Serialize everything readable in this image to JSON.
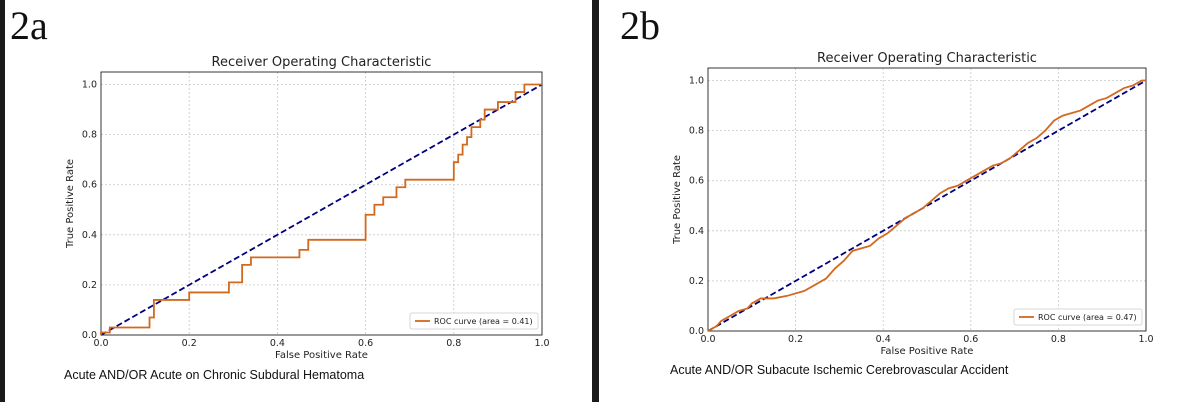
{
  "chart_data": [
    {
      "type": "line",
      "panel_label": "2a",
      "title": "Receiver Operating Characteristic",
      "xlabel": "False Positive Rate",
      "ylabel": "True Positive Rate",
      "caption": "Acute AND/OR Acute on Chronic Subdural Hematoma",
      "xlim": [
        0,
        1
      ],
      "ylim": [
        0,
        1.05
      ],
      "xticks": [
        "0.0",
        "0.2",
        "0.4",
        "0.6",
        "0.8",
        "1.0"
      ],
      "yticks": [
        "0.0",
        "0.2",
        "0.4",
        "0.6",
        "0.8",
        "1.0"
      ],
      "grid": true,
      "legend_position": "bottom-right",
      "series": [
        {
          "name": "ROC curve (area = 0.41)",
          "color": "#d2691e",
          "x": [
            0,
            0,
            0.02,
            0.02,
            0.05,
            0.05,
            0.11,
            0.11,
            0.12,
            0.12,
            0.2,
            0.2,
            0.29,
            0.29,
            0.32,
            0.32,
            0.34,
            0.34,
            0.45,
            0.45,
            0.47,
            0.47,
            0.6,
            0.6,
            0.62,
            0.62,
            0.64,
            0.64,
            0.67,
            0.67,
            0.69,
            0.69,
            0.71,
            0.71,
            0.8,
            0.8,
            0.81,
            0.81,
            0.82,
            0.82,
            0.83,
            0.83,
            0.84,
            0.84,
            0.85,
            0.85,
            0.86,
            0.86,
            0.87,
            0.87,
            0.9,
            0.9,
            0.94,
            0.94,
            0.96,
            0.96,
            1.0
          ],
          "y": [
            0,
            0.01,
            0.01,
            0.03,
            0.03,
            0.03,
            0.03,
            0.07,
            0.07,
            0.14,
            0.14,
            0.17,
            0.17,
            0.21,
            0.21,
            0.28,
            0.28,
            0.31,
            0.31,
            0.34,
            0.34,
            0.38,
            0.38,
            0.48,
            0.48,
            0.52,
            0.52,
            0.55,
            0.55,
            0.59,
            0.59,
            0.62,
            0.62,
            0.62,
            0.62,
            0.69,
            0.69,
            0.72,
            0.72,
            0.76,
            0.76,
            0.79,
            0.79,
            0.83,
            0.83,
            0.83,
            0.83,
            0.86,
            0.86,
            0.9,
            0.9,
            0.93,
            0.93,
            0.97,
            0.97,
            1.0,
            1.0
          ]
        },
        {
          "color": "#000080",
          "x": [
            0,
            1
          ],
          "y": [
            0,
            1
          ]
        }
      ]
    },
    {
      "type": "line",
      "panel_label": "2b",
      "title": "Receiver Operating Characteristic",
      "xlabel": "False Positive Rate",
      "ylabel": "True Positive Rate",
      "caption": "Acute AND/OR Subacute Ischemic Cerebrovascular Accident",
      "xlim": [
        0,
        1
      ],
      "ylim": [
        0,
        1.05
      ],
      "xticks": [
        "0.0",
        "0.2",
        "0.4",
        "0.6",
        "0.8",
        "1.0"
      ],
      "yticks": [
        "0.0",
        "0.2",
        "0.4",
        "0.6",
        "0.8",
        "1.0"
      ],
      "grid": true,
      "legend_position": "bottom-right",
      "series": [
        {
          "name": "ROC curve (area = 0.47)",
          "color": "#d2691e",
          "x": [
            0,
            0.01,
            0.02,
            0.03,
            0.05,
            0.07,
            0.09,
            0.1,
            0.12,
            0.15,
            0.18,
            0.2,
            0.22,
            0.25,
            0.27,
            0.29,
            0.31,
            0.33,
            0.35,
            0.37,
            0.39,
            0.41,
            0.43,
            0.45,
            0.47,
            0.49,
            0.51,
            0.53,
            0.55,
            0.57,
            0.59,
            0.61,
            0.63,
            0.65,
            0.67,
            0.69,
            0.71,
            0.73,
            0.75,
            0.77,
            0.79,
            0.81,
            0.83,
            0.85,
            0.87,
            0.89,
            0.91,
            0.93,
            0.95,
            0.97,
            0.99,
            1.0
          ],
          "y": [
            0,
            0.01,
            0.02,
            0.04,
            0.06,
            0.08,
            0.09,
            0.11,
            0.13,
            0.13,
            0.14,
            0.15,
            0.16,
            0.19,
            0.21,
            0.25,
            0.28,
            0.32,
            0.33,
            0.34,
            0.37,
            0.39,
            0.42,
            0.45,
            0.47,
            0.49,
            0.52,
            0.55,
            0.57,
            0.58,
            0.6,
            0.62,
            0.64,
            0.66,
            0.67,
            0.69,
            0.72,
            0.75,
            0.77,
            0.8,
            0.84,
            0.86,
            0.87,
            0.88,
            0.9,
            0.92,
            0.93,
            0.95,
            0.97,
            0.98,
            1.0,
            1.0
          ]
        },
        {
          "color": "#000080",
          "x": [
            0,
            1
          ],
          "y": [
            0,
            1
          ]
        }
      ]
    }
  ]
}
